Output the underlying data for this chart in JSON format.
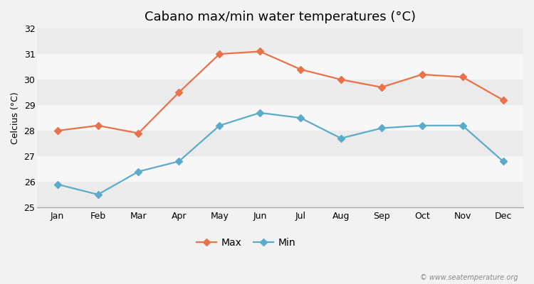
{
  "title": "Cabano max/min water temperatures (°C)",
  "ylabel": "Celcius (°C)",
  "months": [
    "Jan",
    "Feb",
    "Mar",
    "Apr",
    "May",
    "Jun",
    "Jul",
    "Aug",
    "Sep",
    "Oct",
    "Nov",
    "Dec"
  ],
  "max_temps": [
    28.0,
    28.2,
    27.9,
    29.5,
    31.0,
    31.1,
    30.4,
    30.0,
    29.7,
    30.2,
    30.1,
    29.2
  ],
  "min_temps": [
    25.9,
    25.5,
    26.4,
    26.8,
    28.2,
    28.7,
    28.5,
    27.7,
    28.1,
    28.2,
    28.2,
    26.8
  ],
  "max_color": "#e8724a",
  "min_color": "#5aacca",
  "bg_color": "#f2f2f2",
  "band_colors": [
    "#ebebeb",
    "#f7f7f7"
  ],
  "ylim": [
    25,
    32
  ],
  "yticks": [
    25,
    26,
    27,
    28,
    29,
    30,
    31,
    32
  ],
  "title_fontsize": 13,
  "label_fontsize": 9,
  "tick_fontsize": 9,
  "watermark": "© www.seatemperature.org",
  "legend_labels": [
    "Max",
    "Min"
  ],
  "marker": "D",
  "linewidth": 1.6,
  "markersize": 5
}
